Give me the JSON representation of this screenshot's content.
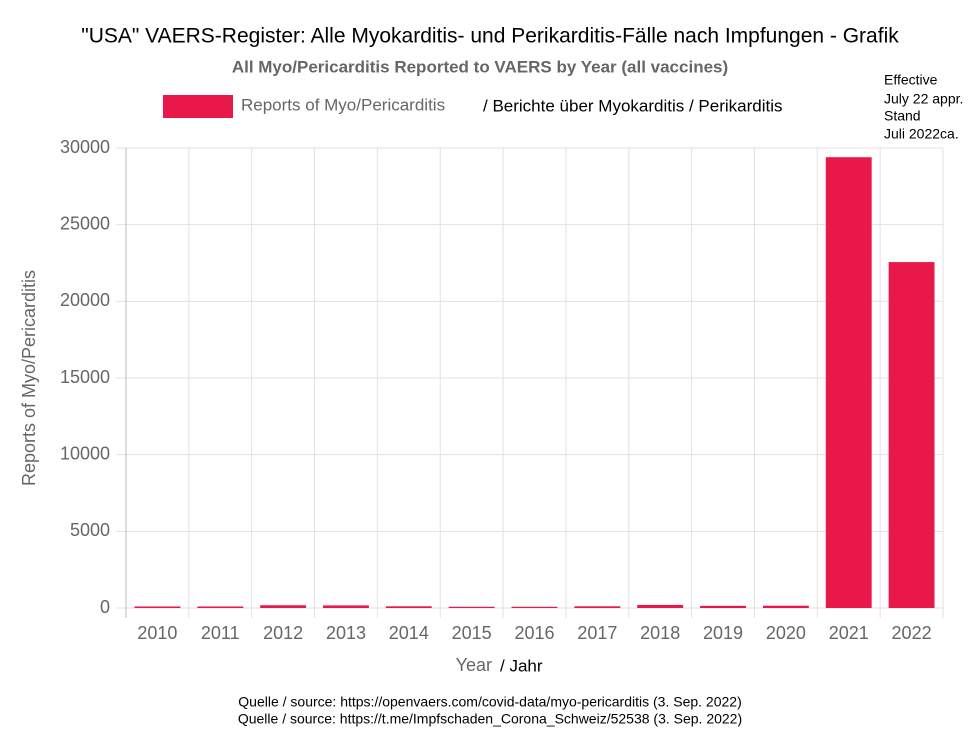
{
  "chart_data": {
    "type": "bar",
    "title": "\"USA\" VAERS-Register: Alle Myokarditis- und Perikarditis-Fälle nach Impfungen - Grafik",
    "subtitle": "All Myo/Pericarditis Reported to VAERS by Year (all vaccines)",
    "legend_note": "/ Berichte über Myokarditis / Perikarditis",
    "note": [
      "Effective",
      "July 22 appr.",
      "Stand",
      "Juli 2022ca."
    ],
    "xlabel": "Year",
    "xlabel_note": "/ Jahr",
    "ylabel": "Reports of Myo/Pericarditis",
    "sources": [
      "Quelle / source: https://openvaers.com/covid-data/myo-pericarditis (3. Sep. 2022)",
      "Quelle / source: https://t.me/Impfschaden_Corona_Schweiz/52538 (3. Sep. 2022)"
    ],
    "categories": [
      "2010",
      "2011",
      "2012",
      "2013",
      "2014",
      "2015",
      "2016",
      "2017",
      "2018",
      "2019",
      "2020",
      "2021",
      "2022"
    ],
    "series": [
      {
        "name": "Reports of Myo/Pericarditis",
        "color": "#e8194a",
        "values": [
          100,
          100,
          180,
          170,
          110,
          80,
          80,
          110,
          200,
          140,
          150,
          29400,
          22560
        ]
      }
    ],
    "ylim": [
      0,
      30000
    ],
    "yticks": [
      0,
      5000,
      10000,
      15000,
      20000,
      25000,
      30000
    ],
    "grid": true
  }
}
